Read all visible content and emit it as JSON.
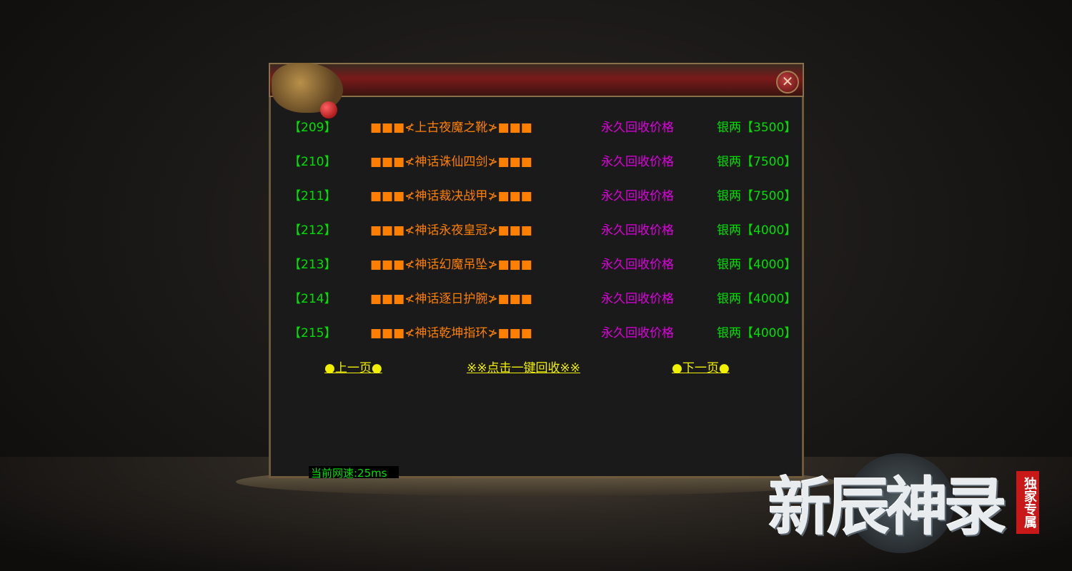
{
  "dialog": {
    "close_icon": "close-x-icon",
    "rows": [
      {
        "id": "【209】",
        "name": "■■■≮上古夜魔之靴≯■■■",
        "label": "永久回收价格",
        "price": "银两【3500】"
      },
      {
        "id": "【210】",
        "name": "■■■≮神话诛仙四剑≯■■■",
        "label": "永久回收价格",
        "price": "银两【7500】"
      },
      {
        "id": "【211】",
        "name": "■■■≮神话裁决战甲≯■■■",
        "label": "永久回收价格",
        "price": "银两【7500】"
      },
      {
        "id": "【212】",
        "name": "■■■≮神话永夜皇冠≯■■■",
        "label": "永久回收价格",
        "price": "银两【4000】"
      },
      {
        "id": "【213】",
        "name": "■■■≮神话幻魔吊坠≯■■■",
        "label": "永久回收价格",
        "price": "银两【4000】"
      },
      {
        "id": "【214】",
        "name": "■■■≮神话逐日护腕≯■■■",
        "label": "永久回收价格",
        "price": "银两【4000】"
      },
      {
        "id": "【215】",
        "name": "■■■≮神话乾坤指环≯■■■",
        "label": "永久回收价格",
        "price": "银两【4000】"
      }
    ],
    "prev_page": "●上一页●",
    "recycle_all": "※※点击一键回收※※",
    "next_page": "●下一页●"
  },
  "status": {
    "network_speed": "当前网速:25ms"
  },
  "logo": {
    "title": "新辰神录",
    "badge": "独家专属"
  },
  "colors": {
    "id": "#00e000",
    "name": "#ff8000",
    "label": "#e000e0",
    "price": "#00e000",
    "link": "#f0f000"
  }
}
